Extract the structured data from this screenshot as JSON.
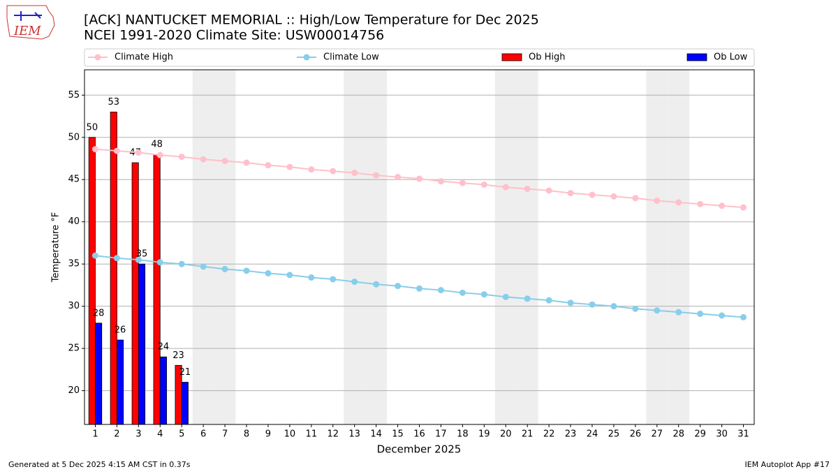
{
  "chart_data": {
    "type": "bar",
    "logo": "IEM",
    "title": "[ACK] NANTUCKET MEMORIAL :: High/Low Temperature for Dec 2025",
    "subtitle": "NCEI 1991-2020 Climate Site: USW00014756",
    "ylabel": "Temperature °F",
    "xlabel": "December 2025",
    "footer_left": "Generated at 5 Dec 2025 4:15 AM CST in 0.37s",
    "footer_right": "IEM Autoplot App #17",
    "x": [
      1,
      2,
      3,
      4,
      5,
      6,
      7,
      8,
      9,
      10,
      11,
      12,
      13,
      14,
      15,
      16,
      17,
      18,
      19,
      20,
      21,
      22,
      23,
      24,
      25,
      26,
      27,
      28,
      29,
      30,
      31
    ],
    "xlim": [
      0.5,
      31.5
    ],
    "xticks": [
      1,
      2,
      3,
      4,
      5,
      6,
      7,
      8,
      9,
      10,
      11,
      12,
      13,
      14,
      15,
      16,
      17,
      18,
      19,
      20,
      21,
      22,
      23,
      24,
      25,
      26,
      27,
      28,
      29,
      30,
      31
    ],
    "ylim": [
      16,
      58
    ],
    "yticks": [
      20,
      25,
      30,
      35,
      40,
      45,
      50,
      55
    ],
    "grid": true,
    "legend": "top",
    "shaded_days": [
      6,
      7,
      13,
      14,
      20,
      21,
      27,
      28
    ],
    "shade_color": "#eeeeee",
    "series": [
      {
        "name": "Climate High",
        "kind": "line",
        "color": "#ffc0cb",
        "values": [
          48.6,
          48.4,
          48.2,
          47.9,
          47.7,
          47.4,
          47.2,
          47.0,
          46.7,
          46.5,
          46.2,
          46.0,
          45.8,
          45.5,
          45.3,
          45.1,
          44.8,
          44.6,
          44.4,
          44.1,
          43.9,
          43.7,
          43.4,
          43.2,
          43.0,
          42.8,
          42.5,
          42.3,
          42.1,
          41.9,
          41.7
        ]
      },
      {
        "name": "Climate Low",
        "kind": "line",
        "color": "#87ceeb",
        "values": [
          36.0,
          35.7,
          35.5,
          35.2,
          35.0,
          34.7,
          34.4,
          34.2,
          33.9,
          33.7,
          33.4,
          33.2,
          32.9,
          32.6,
          32.4,
          32.1,
          31.9,
          31.6,
          31.4,
          31.1,
          30.9,
          30.7,
          30.4,
          30.2,
          30.0,
          29.7,
          29.5,
          29.3,
          29.1,
          28.9,
          28.7
        ]
      },
      {
        "name": "Ob High",
        "kind": "bar",
        "color": "#ff0000",
        "values": [
          50,
          53,
          47,
          48,
          23,
          null,
          null,
          null,
          null,
          null,
          null,
          null,
          null,
          null,
          null,
          null,
          null,
          null,
          null,
          null,
          null,
          null,
          null,
          null,
          null,
          null,
          null,
          null,
          null,
          null,
          null
        ]
      },
      {
        "name": "Ob Low",
        "kind": "bar",
        "color": "#0000ff",
        "values": [
          28,
          26,
          35,
          24,
          21,
          null,
          null,
          null,
          null,
          null,
          null,
          null,
          null,
          null,
          null,
          null,
          null,
          null,
          null,
          null,
          null,
          null,
          null,
          null,
          null,
          null,
          null,
          null,
          null,
          null,
          null
        ]
      }
    ]
  }
}
